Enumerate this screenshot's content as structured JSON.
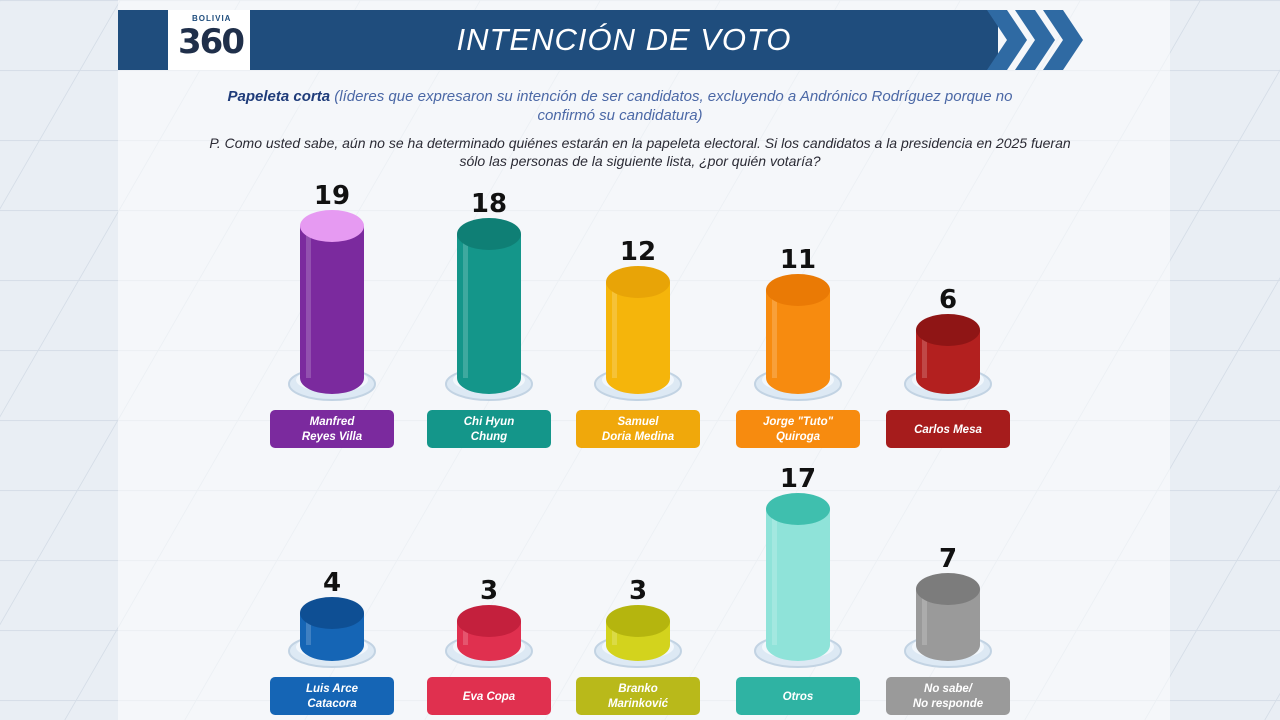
{
  "header": {
    "title": "INTENCIÓN DE VOTO",
    "logo_text": "BOLIVIA",
    "logo_number": "360"
  },
  "subtitle": {
    "bold": "Papeleta corta",
    "text": "(líderes que expresaron su intención de ser candidatos, excluyendo a Andrónico Rodríguez porque no confirmó su candidatura)"
  },
  "question": "P. Como usted sabe, aún no se ha determinado quiénes estarán en la papeleta electoral. Si los candidatos a la presidencia en 2025 fueran sólo las personas de la siguiente lista, ¿por quién votaría?",
  "chart_data": {
    "type": "bar",
    "title": "INTENCIÓN DE VOTO",
    "categories": [
      [
        "Manfred",
        "Reyes Villa"
      ],
      [
        "Chi Hyun",
        "Chung"
      ],
      [
        "Samuel",
        "Doria Medina"
      ],
      [
        "Jorge \"Tuto\"",
        "Quiroga"
      ],
      [
        "Carlos Mesa"
      ],
      [
        "Luis Arce",
        "Catacora"
      ],
      [
        "Eva Copa"
      ],
      [
        "Branko",
        "Marinković"
      ],
      [
        "Otros"
      ],
      [
        "No sabe/",
        "No responde"
      ]
    ],
    "values": [
      19,
      18,
      12,
      11,
      6,
      4,
      3,
      3,
      17,
      7
    ],
    "colors": [
      "#7b2a9e",
      "#14968a",
      "#f5b50b",
      "#f78b0f",
      "#b3201f",
      "#1565b5",
      "#e0304f",
      "#d3d31d",
      "#8fe3d9",
      "#9a9a9a"
    ],
    "top_colors": [
      "#e69af2",
      "#0f7f75",
      "#e8a407",
      "#ea7a05",
      "#8f1515",
      "#0e4f94",
      "#c4203d",
      "#b5b50e",
      "#3fbfae",
      "#7c7c7c"
    ],
    "label_colors": [
      "#7b2a9e",
      "#14968a",
      "#f0a80b",
      "#f78b0f",
      "#a61c1c",
      "#1565b5",
      "#e0304f",
      "#b9b91a",
      "#2fb3a3",
      "#9a9a9a"
    ]
  }
}
